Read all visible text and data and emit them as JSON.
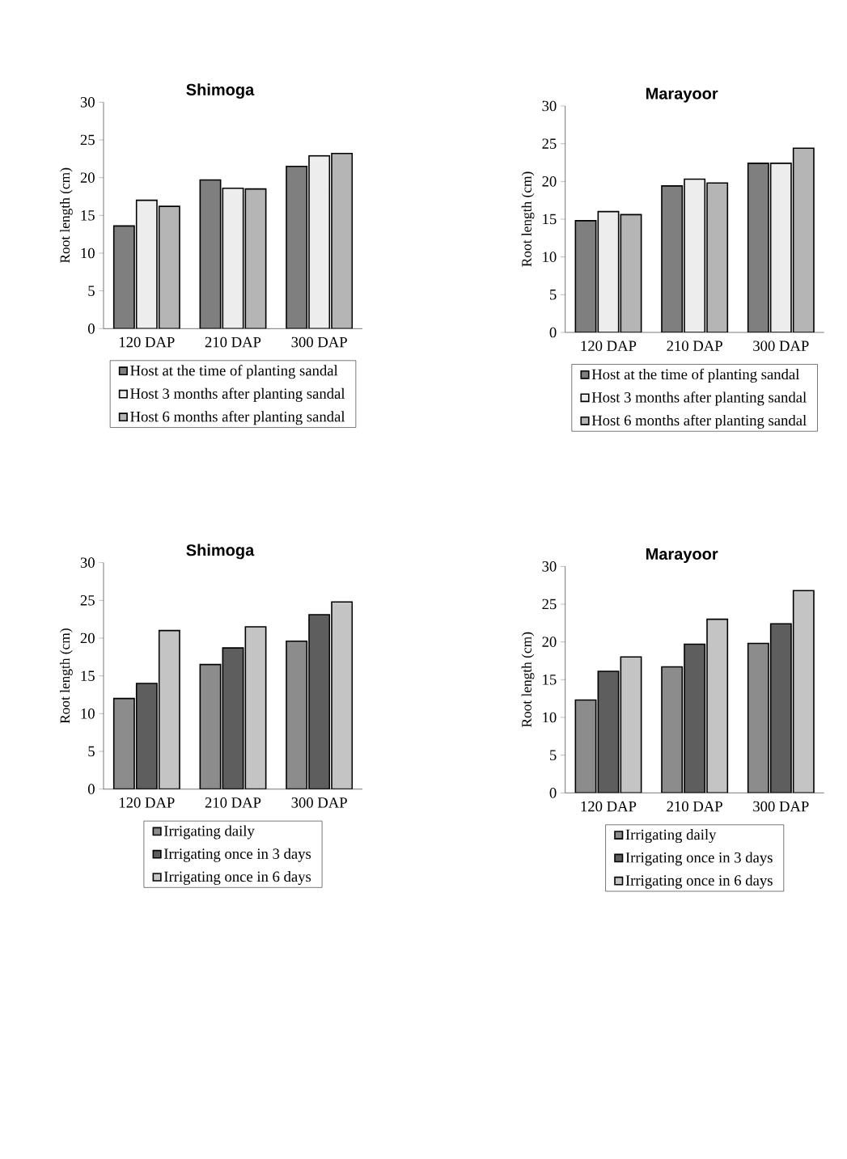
{
  "chart_data": [
    {
      "type": "bar",
      "title": "Shimoga",
      "ylabel": "Root length (cm)",
      "categories": [
        "120 DAP",
        "210 DAP",
        "300 DAP"
      ],
      "ylim": [
        0,
        30
      ],
      "yticks": [
        0,
        5,
        10,
        15,
        20,
        25,
        30
      ],
      "legend": "bottom",
      "series": [
        {
          "name": "Host at the time of planting sandal",
          "color": "#7f7f7f",
          "values": [
            13.6,
            19.7,
            21.5
          ]
        },
        {
          "name": "Host 3 months after planting sandal",
          "color": "#ededed",
          "values": [
            17.0,
            18.6,
            22.9
          ]
        },
        {
          "name": "Host 6 months after planting sandal",
          "color": "#b5b5b5",
          "values": [
            16.2,
            18.5,
            23.2
          ]
        }
      ]
    },
    {
      "type": "bar",
      "title": "Marayoor",
      "ylabel": "Root length (cm)",
      "categories": [
        "120 DAP",
        "210 DAP",
        "300 DAP"
      ],
      "ylim": [
        0,
        30
      ],
      "yticks": [
        0,
        5,
        10,
        15,
        20,
        25,
        30
      ],
      "legend": "bottom",
      "series": [
        {
          "name": "Host at the time of planting sandal",
          "color": "#7f7f7f",
          "values": [
            14.8,
            19.4,
            22.4
          ]
        },
        {
          "name": "Host 3 months after planting sandal",
          "color": "#ededed",
          "values": [
            16.0,
            20.3,
            22.4
          ]
        },
        {
          "name": "Host 6 months after planting sandal",
          "color": "#b5b5b5",
          "values": [
            15.6,
            19.8,
            24.4
          ]
        }
      ]
    },
    {
      "type": "bar",
      "title": "Shimoga",
      "ylabel": "Root length (cm)",
      "categories": [
        "120 DAP",
        "210 DAP",
        "300 DAP"
      ],
      "ylim": [
        0,
        30
      ],
      "yticks": [
        0,
        5,
        10,
        15,
        20,
        25,
        30
      ],
      "legend": "bottom",
      "series": [
        {
          "name": "Irrigating daily",
          "color": "#8c8c8c",
          "values": [
            12.0,
            16.5,
            19.6
          ]
        },
        {
          "name": "Irrigating once in 3 days",
          "color": "#5e5e5e",
          "values": [
            14.0,
            18.7,
            23.1
          ]
        },
        {
          "name": "Irrigating once in 6 days",
          "color": "#c4c4c4",
          "values": [
            21.0,
            21.5,
            24.8
          ]
        }
      ]
    },
    {
      "type": "bar",
      "title": "Marayoor",
      "ylabel": "Root length (cm)",
      "categories": [
        "120 DAP",
        "210 DAP",
        "300 DAP"
      ],
      "ylim": [
        0,
        30
      ],
      "yticks": [
        0,
        5,
        10,
        15,
        20,
        25,
        30
      ],
      "legend": "bottom",
      "series": [
        {
          "name": "Irrigating daily",
          "color": "#8c8c8c",
          "values": [
            12.3,
            16.7,
            19.8
          ]
        },
        {
          "name": "Irrigating once in 3 days",
          "color": "#5e5e5e",
          "values": [
            16.1,
            19.7,
            22.4
          ]
        },
        {
          "name": "Irrigating once in 6 days",
          "color": "#c4c4c4",
          "values": [
            18.0,
            23.0,
            26.8
          ]
        }
      ]
    }
  ]
}
